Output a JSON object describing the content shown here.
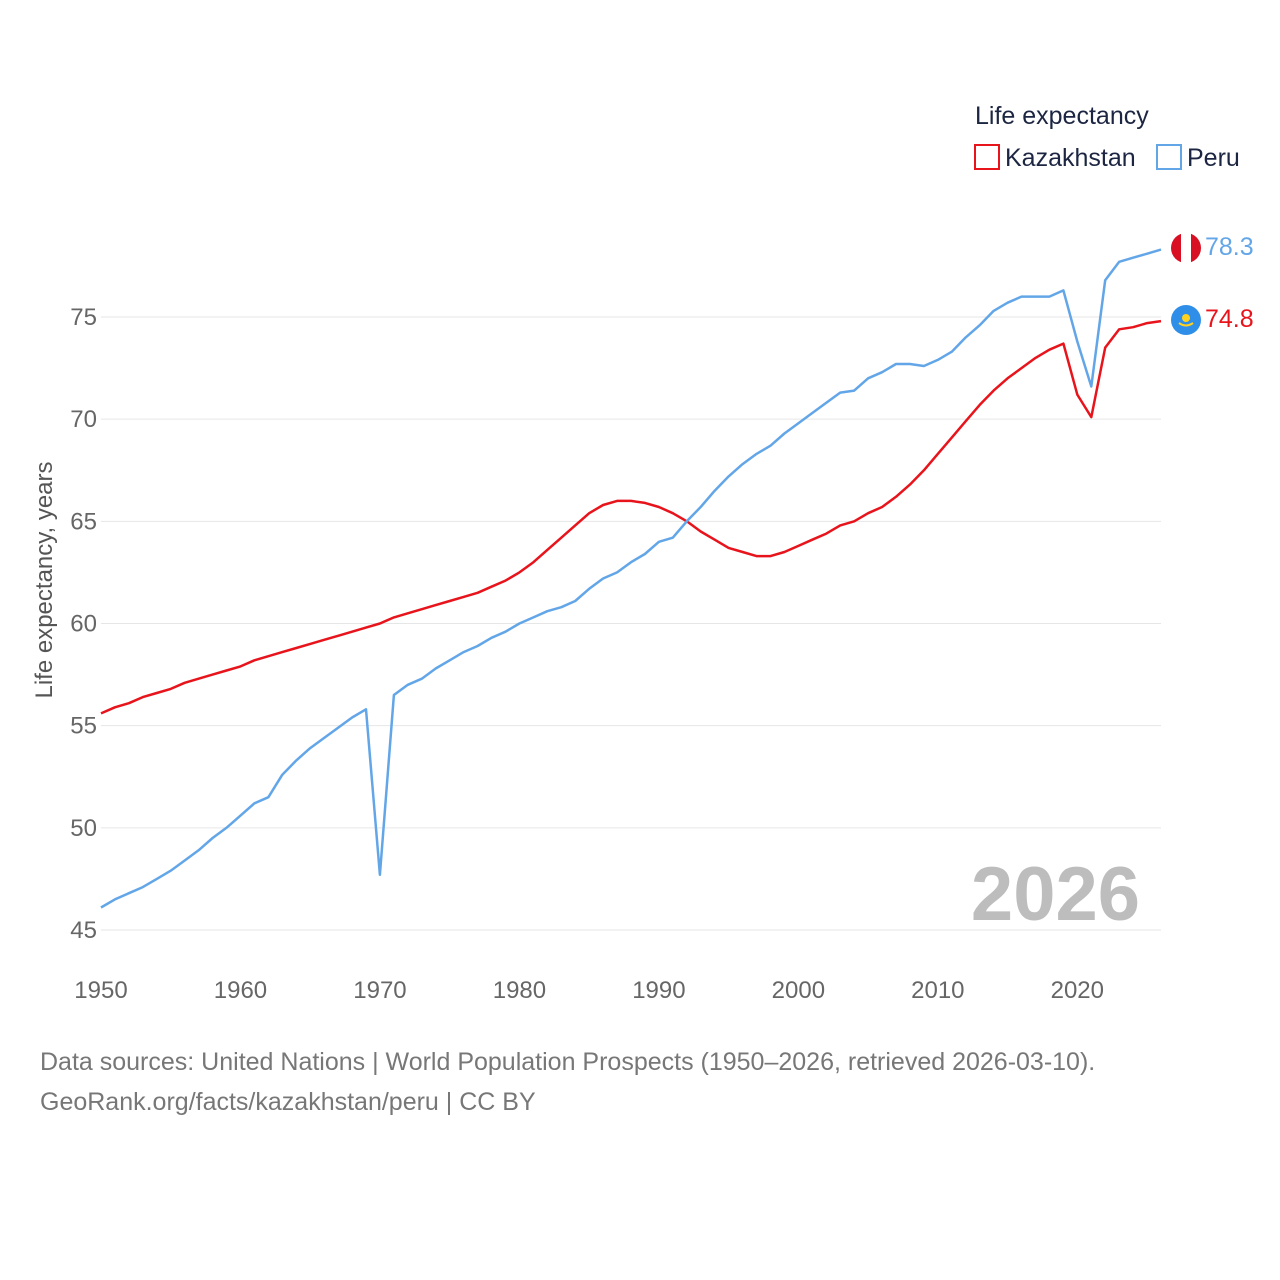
{
  "chart_data": {
    "type": "line",
    "title": "",
    "ylabel": "Life expectancy, years",
    "xlabel": "",
    "xlim": [
      1950,
      2026
    ],
    "ylim": [
      45,
      80
    ],
    "yticks": [
      45,
      50,
      55,
      60,
      65,
      70,
      75
    ],
    "xticks": [
      1950,
      1960,
      1970,
      1980,
      1990,
      2000,
      2010,
      2020
    ],
    "year_watermark": "2026",
    "legend": {
      "title": "Life expectancy",
      "position": "top-right"
    },
    "x": [
      1950,
      1951,
      1952,
      1953,
      1954,
      1955,
      1956,
      1957,
      1958,
      1959,
      1960,
      1961,
      1962,
      1963,
      1964,
      1965,
      1966,
      1967,
      1968,
      1969,
      1970,
      1971,
      1972,
      1973,
      1974,
      1975,
      1976,
      1977,
      1978,
      1979,
      1980,
      1981,
      1982,
      1983,
      1984,
      1985,
      1986,
      1987,
      1988,
      1989,
      1990,
      1991,
      1992,
      1993,
      1994,
      1995,
      1996,
      1997,
      1998,
      1999,
      2000,
      2001,
      2002,
      2003,
      2004,
      2005,
      2006,
      2007,
      2008,
      2009,
      2010,
      2011,
      2012,
      2013,
      2014,
      2015,
      2016,
      2017,
      2018,
      2019,
      2020,
      2021,
      2022,
      2023,
      2024,
      2025,
      2026
    ],
    "series": [
      {
        "name": "Kazakhstan",
        "color": "#e8141c",
        "end_label": "74.8",
        "flag": "kazakhstan-flag",
        "values": [
          55.6,
          55.9,
          56.1,
          56.4,
          56.6,
          56.8,
          57.1,
          57.3,
          57.5,
          57.7,
          57.9,
          58.2,
          58.4,
          58.6,
          58.8,
          59.0,
          59.2,
          59.4,
          59.6,
          59.8,
          60.0,
          60.3,
          60.5,
          60.7,
          60.9,
          61.1,
          61.3,
          61.5,
          61.8,
          62.1,
          62.5,
          63.0,
          63.6,
          64.2,
          64.8,
          65.4,
          65.8,
          66.0,
          66.0,
          65.9,
          65.7,
          65.4,
          65.0,
          64.5,
          64.1,
          63.7,
          63.5,
          63.3,
          63.3,
          63.5,
          63.8,
          64.1,
          64.4,
          64.8,
          65.0,
          65.4,
          65.7,
          66.2,
          66.8,
          67.5,
          68.3,
          69.1,
          69.9,
          70.7,
          71.4,
          72.0,
          72.5,
          73.0,
          73.4,
          73.7,
          71.2,
          70.1,
          73.5,
          74.4,
          74.5,
          74.7,
          74.8
        ]
      },
      {
        "name": "Peru",
        "color": "#63a6e8",
        "end_label": "78.3",
        "flag": "peru-flag",
        "values": [
          46.1,
          46.5,
          46.8,
          47.1,
          47.5,
          47.9,
          48.4,
          48.9,
          49.5,
          50.0,
          50.6,
          51.2,
          51.5,
          52.6,
          53.3,
          53.9,
          54.4,
          54.9,
          55.4,
          55.8,
          47.7,
          56.5,
          57.0,
          57.3,
          57.8,
          58.2,
          58.6,
          58.9,
          59.3,
          59.6,
          60.0,
          60.3,
          60.6,
          60.8,
          61.1,
          61.7,
          62.2,
          62.5,
          63.0,
          63.4,
          64.0,
          64.2,
          65.0,
          65.7,
          66.5,
          67.2,
          67.8,
          68.3,
          68.7,
          69.3,
          69.8,
          70.3,
          70.8,
          71.3,
          71.4,
          72.0,
          72.3,
          72.7,
          72.7,
          72.6,
          72.9,
          73.3,
          74.0,
          74.6,
          75.3,
          75.7,
          76.0,
          76.0,
          76.0,
          76.3,
          73.8,
          71.6,
          76.8,
          77.7,
          77.9,
          78.1,
          78.3
        ]
      }
    ]
  },
  "source": {
    "line1": "Data sources: United Nations | World Population Prospects (1950–2026, retrieved 2026-03-10).",
    "line2": "GeoRank.org/facts/kazakhstan/peru | CC BY"
  }
}
